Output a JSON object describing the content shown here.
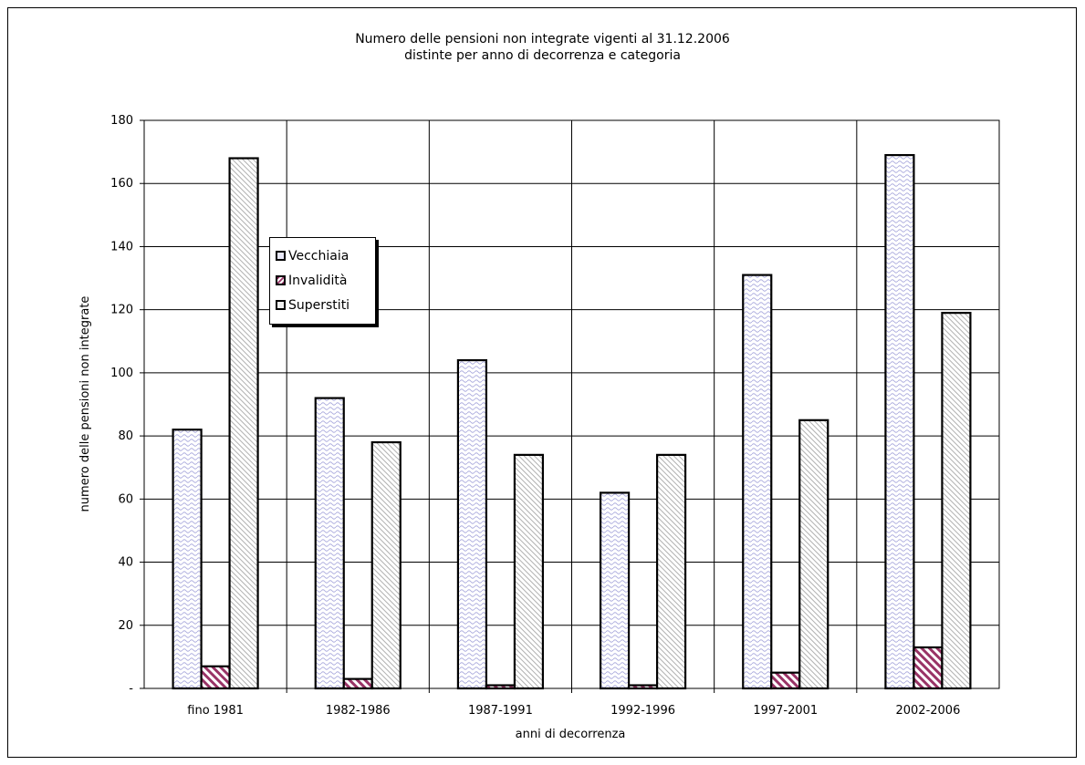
{
  "chart_data": {
    "type": "bar",
    "title": "Numero delle pensioni non integrate vigenti al 31.12.2006\ndistinte per anno di decorrenza e categoria",
    "xlabel": "anni di decorrenza",
    "ylabel": "numero delle pensioni non integrate",
    "categories": [
      "fino 1981",
      "1982-1986",
      "1987-1991",
      "1992-1996",
      "1997-2001",
      "2002-2006"
    ],
    "ylim": [
      0,
      180
    ],
    "yticks": [
      {
        "value": 0,
        "label": "-"
      },
      {
        "value": 20,
        "label": "20"
      },
      {
        "value": 40,
        "label": "40"
      },
      {
        "value": 60,
        "label": "60"
      },
      {
        "value": 80,
        "label": "80"
      },
      {
        "value": 100,
        "label": "100"
      },
      {
        "value": 120,
        "label": "120"
      },
      {
        "value": 140,
        "label": "140"
      },
      {
        "value": 160,
        "label": "160"
      },
      {
        "value": 180,
        "label": "180"
      }
    ],
    "grid": true,
    "legend_position": "upper-left",
    "series": [
      {
        "name": "Vecchiaia",
        "values": [
          82,
          92,
          104,
          62,
          131,
          169
        ],
        "color": "#e8e8f8",
        "pattern": "wave-blue"
      },
      {
        "name": "Invalidità",
        "values": [
          7,
          3,
          1,
          1,
          5,
          13
        ],
        "color": "#993366",
        "pattern": "diagonal-red"
      },
      {
        "name": "Superstiti",
        "values": [
          168,
          78,
          74,
          74,
          85,
          119
        ],
        "color": "#f0f0f0",
        "pattern": "diagonal-gray"
      }
    ]
  }
}
